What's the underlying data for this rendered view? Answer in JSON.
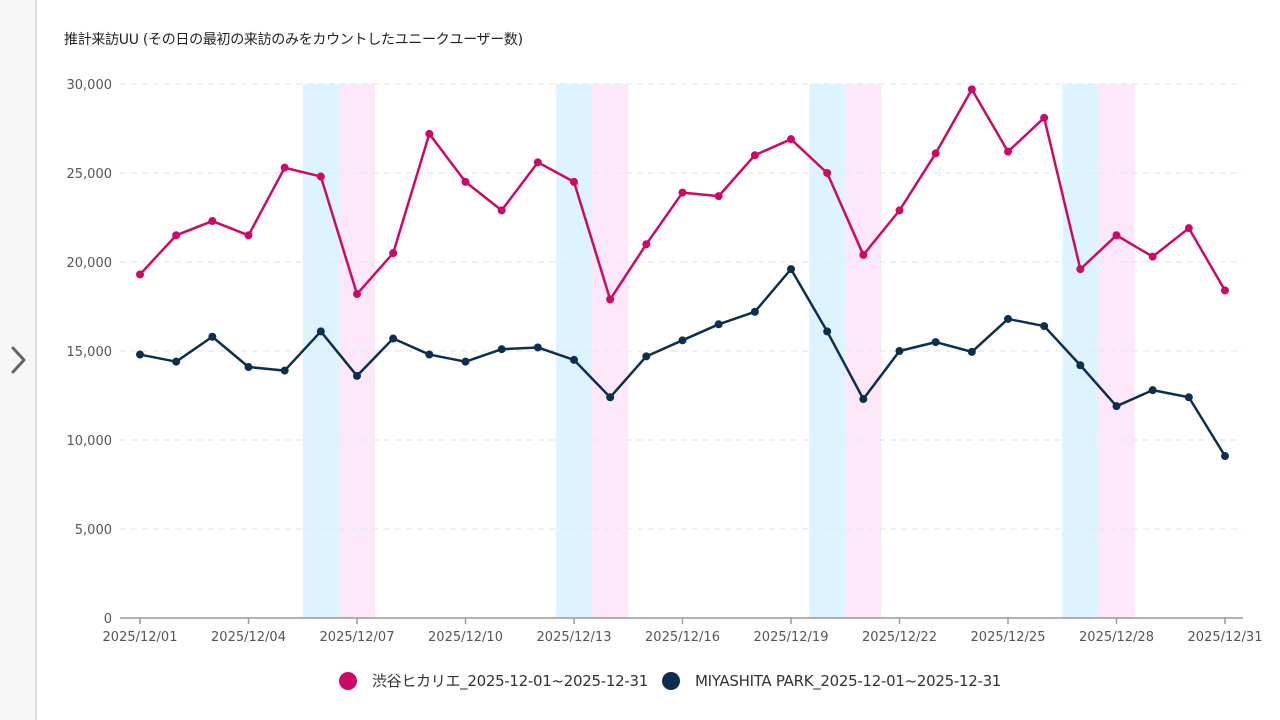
{
  "sidebar": {
    "expand_icon": "chevron-right-icon"
  },
  "chart_data": {
    "type": "line",
    "title": "推計来訪UU (その日の最初の来訪のみをカウントしたユニークユーザー数)",
    "xlabel": "",
    "ylabel": "",
    "ylim": [
      0,
      30000
    ],
    "grid": true,
    "yticks": [
      0,
      5000,
      10000,
      15000,
      20000,
      25000,
      30000
    ],
    "ytick_labels": [
      "0",
      "5,000",
      "10,000",
      "15,000",
      "20,000",
      "25,000",
      "30,000"
    ],
    "x": [
      "2025/12/01",
      "2025/12/02",
      "2025/12/03",
      "2025/12/04",
      "2025/12/05",
      "2025/12/06",
      "2025/12/07",
      "2025/12/08",
      "2025/12/09",
      "2025/12/10",
      "2025/12/11",
      "2025/12/12",
      "2025/12/13",
      "2025/12/14",
      "2025/12/15",
      "2025/12/16",
      "2025/12/17",
      "2025/12/18",
      "2025/12/19",
      "2025/12/20",
      "2025/12/21",
      "2025/12/22",
      "2025/12/23",
      "2025/12/24",
      "2025/12/25",
      "2025/12/26",
      "2025/12/27",
      "2025/12/28",
      "2025/12/29",
      "2025/12/30",
      "2025/12/31"
    ],
    "xtick_labels": [
      "2025/12/01",
      "2025/12/04",
      "2025/12/07",
      "2025/12/10",
      "2025/12/13",
      "2025/12/16",
      "2025/12/19",
      "2025/12/22",
      "2025/12/25",
      "2025/12/28",
      "2025/12/31"
    ],
    "weekend_bands": {
      "saturday": [
        "2025/12/06",
        "2025/12/13",
        "2025/12/20",
        "2025/12/27"
      ],
      "sunday": [
        "2025/12/07",
        "2025/12/14",
        "2025/12/21",
        "2025/12/28"
      ],
      "saturday_color": "#ddf3fd",
      "sunday_color": "#fde8fa"
    },
    "legend_position": "bottom-center",
    "series": [
      {
        "name": "渋谷ヒカリエ_2025-12-01~2025-12-31",
        "color": "#cc0a66",
        "values": [
          19300,
          21500,
          22300,
          21500,
          25300,
          24800,
          18200,
          20500,
          27200,
          24500,
          22900,
          25600,
          24500,
          17900,
          21000,
          23900,
          23700,
          26000,
          26900,
          25000,
          20400,
          22900,
          26100,
          29700,
          26200,
          28100,
          19600,
          21500,
          20300,
          21900,
          18400
        ]
      },
      {
        "name": "MIYASHITA PARK_2025-12-01~2025-12-31",
        "color": "#0d2f4f",
        "values": [
          14800,
          14400,
          15800,
          14100,
          13900,
          16100,
          13600,
          15700,
          14800,
          14400,
          15100,
          15200,
          14500,
          12400,
          14700,
          15600,
          16500,
          17200,
          19600,
          16100,
          12300,
          15000,
          15500,
          14950,
          16800,
          16400,
          14200,
          11900,
          12800,
          12400,
          9100
        ]
      }
    ]
  }
}
